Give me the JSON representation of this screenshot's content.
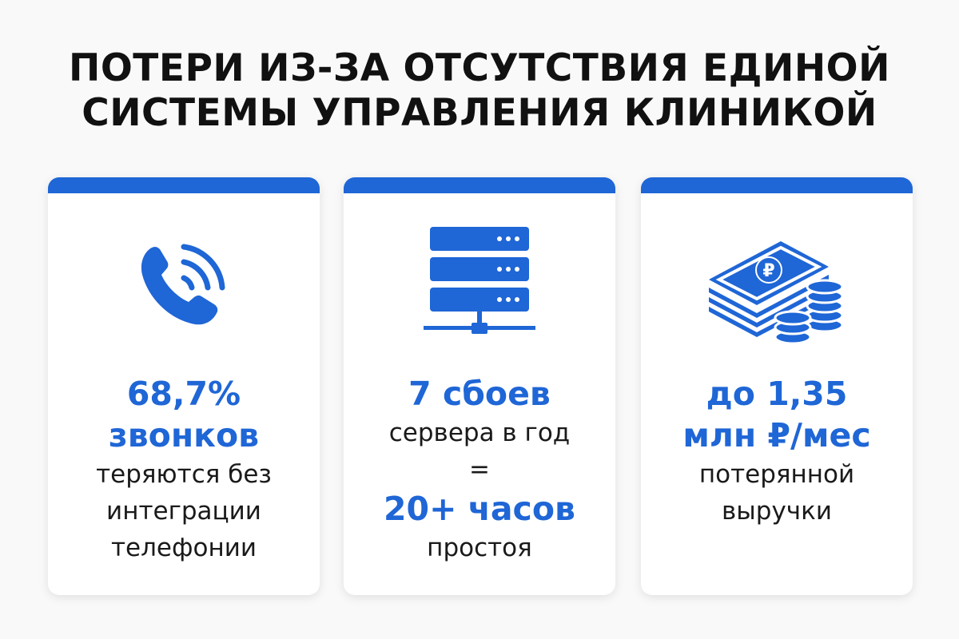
{
  "title": {
    "line1": "ПОТЕРИ ИЗ-ЗА ОТСУТСТВИЯ ЕДИНОЙ",
    "line2": "СИСТЕМЫ УПРАВЛЕНИЯ КЛИНИКОЙ"
  },
  "accent_color": "#1f66d6",
  "cards": [
    {
      "icon": "phone-ringing-icon",
      "highlight1": "68,7%",
      "highlight2": "звонков",
      "text1": "теряются без",
      "text2": "интеграции",
      "text3": "телефонии"
    },
    {
      "icon": "server-network-icon",
      "highlight1": "7 сбоев",
      "text1": "сервера в год",
      "equals": "=",
      "highlight2": "20+ часов",
      "text2": "простоя"
    },
    {
      "icon": "money-stack-coins-icon",
      "highlight1": "до 1,35",
      "highlight2": "млн ₽/мес",
      "text1": "потерянной",
      "text2": "выручки"
    }
  ]
}
